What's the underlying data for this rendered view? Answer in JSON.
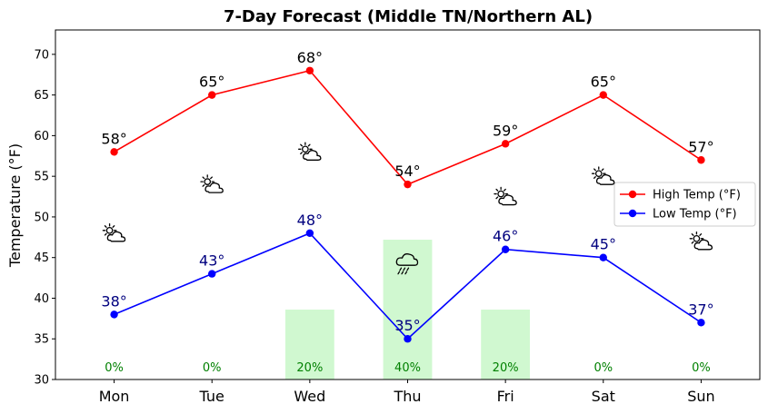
{
  "chart_data": {
    "type": "line",
    "title": "7-Day Forecast (Middle TN/Northern AL)",
    "ylabel": "Temperature (°F)",
    "xlabel": "",
    "categories": [
      "Mon",
      "Tue",
      "Wed",
      "Thu",
      "Fri",
      "Sat",
      "Sun"
    ],
    "ylim": [
      30,
      73
    ],
    "yticks": [
      30,
      35,
      40,
      45,
      50,
      55,
      60,
      65,
      70
    ],
    "series": [
      {
        "name": "High Temp (°F)",
        "color": "#ff0000",
        "values": [
          58,
          65,
          68,
          54,
          59,
          65,
          57
        ],
        "labels": [
          "58°",
          "65°",
          "68°",
          "54°",
          "59°",
          "65°",
          "57°"
        ]
      },
      {
        "name": "Low Temp (°F)",
        "color": "#0000ff",
        "values": [
          38,
          43,
          48,
          35,
          46,
          45,
          37
        ],
        "labels": [
          "38°",
          "43°",
          "48°",
          "35°",
          "46°",
          "45°",
          "37°"
        ]
      }
    ],
    "precipitation": {
      "color": "#90ee90",
      "values": [
        0,
        0,
        20,
        40,
        20,
        0,
        0
      ],
      "labels": [
        "0%",
        "0%",
        "20%",
        "40%",
        "20%",
        "0%",
        "0%"
      ]
    },
    "weather_icons": [
      {
        "day": "Mon",
        "icon": "partly-cloudy-icon",
        "y": 48
      },
      {
        "day": "Tue",
        "icon": "partly-cloudy-icon",
        "y": 54
      },
      {
        "day": "Wed",
        "icon": "partly-cloudy-icon",
        "y": 58
      },
      {
        "day": "Thu",
        "icon": "rain-cloud-icon",
        "y": 44.5
      },
      {
        "day": "Fri",
        "icon": "partly-cloudy-icon",
        "y": 52.5
      },
      {
        "day": "Sat",
        "icon": "partly-cloudy-icon",
        "y": 55
      },
      {
        "day": "Sun",
        "icon": "partly-cloudy-icon",
        "y": 47
      }
    ],
    "legend": {
      "placement": "center-right",
      "entries": [
        "High Temp (°F)",
        "Low Temp (°F)"
      ]
    },
    "grid": false
  }
}
